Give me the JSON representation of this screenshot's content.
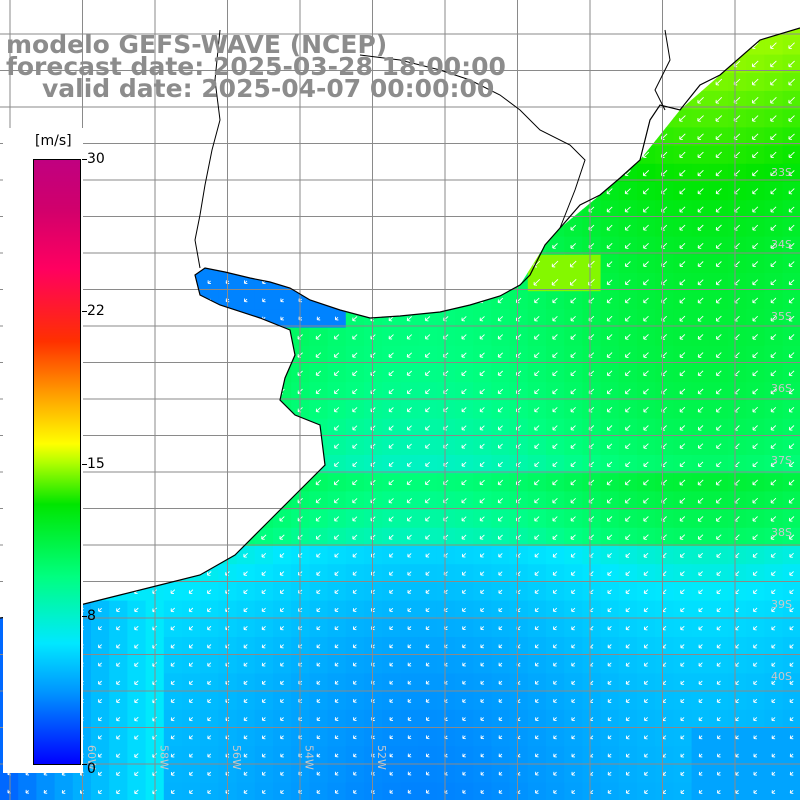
{
  "title": {
    "model": "modelo GEFS-WAVE (NCEP)",
    "forecast": "forecast date: 2025-03-28 18:00:00",
    "valid": "valid date: 2025-04-07 00:00:00"
  },
  "colorbar": {
    "unit": "[m/s]",
    "ticks": [
      "30",
      "22",
      "15",
      "8",
      "0"
    ],
    "tick_values": [
      30,
      22,
      15,
      8,
      0
    ],
    "min": 0,
    "max": 30,
    "colors": [
      "#0000ff",
      "#0096ff",
      "#00e8ff",
      "#00ff80",
      "#00e600",
      "#b4ff00",
      "#ffff00",
      "#ffa000",
      "#ff3000",
      "#ff0060",
      "#c00080"
    ]
  },
  "map": {
    "land_color": "#ffffff",
    "grid_color": "#8a8a8a",
    "coast_color": "#000000",
    "arrow_color": "#ffffff",
    "wind_direction": "from north-east",
    "lat_labels": [
      "33S",
      "34S",
      "35S",
      "36S",
      "37S",
      "38S",
      "39S",
      "40S"
    ],
    "lon_labels": [
      "60W",
      "58W",
      "56W",
      "54W",
      "52W"
    ]
  }
}
